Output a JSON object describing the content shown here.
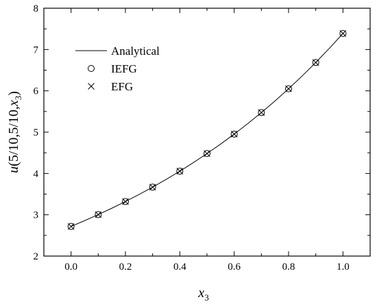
{
  "chart_data": {
    "type": "line",
    "xlabel": {
      "main": "x",
      "sub": "3"
    },
    "ylabel": {
      "u": "u",
      "args": "(5/10,5/10,",
      "x": "x",
      "sub": "3",
      "close": ")"
    },
    "xlim": [
      -0.1,
      1.1
    ],
    "ylim": [
      2,
      8
    ],
    "x_ticks": [
      0.0,
      0.2,
      0.4,
      0.6,
      0.8,
      1.0
    ],
    "x_tick_labels": [
      "0.0",
      "0.2",
      "0.4",
      "0.6",
      "0.8",
      "1.0"
    ],
    "y_ticks": [
      2,
      3,
      4,
      5,
      6,
      7,
      8
    ],
    "y_tick_labels": [
      "2",
      "3",
      "4",
      "5",
      "6",
      "7",
      "8"
    ],
    "grid": false,
    "legend_position": "top-left",
    "series": [
      {
        "name": "Analytical",
        "marker": "line",
        "color": "#000000",
        "x": [
          0.0,
          0.05,
          0.1,
          0.15,
          0.2,
          0.25,
          0.3,
          0.35,
          0.4,
          0.45,
          0.5,
          0.55,
          0.6,
          0.65,
          0.7,
          0.75,
          0.8,
          0.85,
          0.9,
          0.95,
          1.0
        ],
        "y": [
          2.718,
          2.858,
          3.004,
          3.158,
          3.32,
          3.49,
          3.669,
          3.857,
          4.055,
          4.263,
          4.482,
          4.711,
          4.953,
          5.207,
          5.474,
          5.755,
          6.05,
          6.36,
          6.686,
          7.029,
          7.389
        ]
      },
      {
        "name": "IEFG",
        "marker": "circle",
        "color": "#000000",
        "x": [
          0.0,
          0.1,
          0.2,
          0.3,
          0.4,
          0.5,
          0.6,
          0.7,
          0.8,
          0.9,
          1.0
        ],
        "y": [
          2.718,
          3.004,
          3.32,
          3.669,
          4.055,
          4.482,
          4.953,
          5.474,
          6.05,
          6.686,
          7.389
        ]
      },
      {
        "name": "EFG",
        "marker": "cross",
        "color": "#000000",
        "x": [
          0.0,
          0.1,
          0.2,
          0.3,
          0.4,
          0.5,
          0.6,
          0.7,
          0.8,
          0.9,
          1.0
        ],
        "y": [
          2.718,
          3.004,
          3.32,
          3.669,
          4.055,
          4.482,
          4.953,
          5.474,
          6.05,
          6.686,
          7.389
        ]
      }
    ]
  }
}
